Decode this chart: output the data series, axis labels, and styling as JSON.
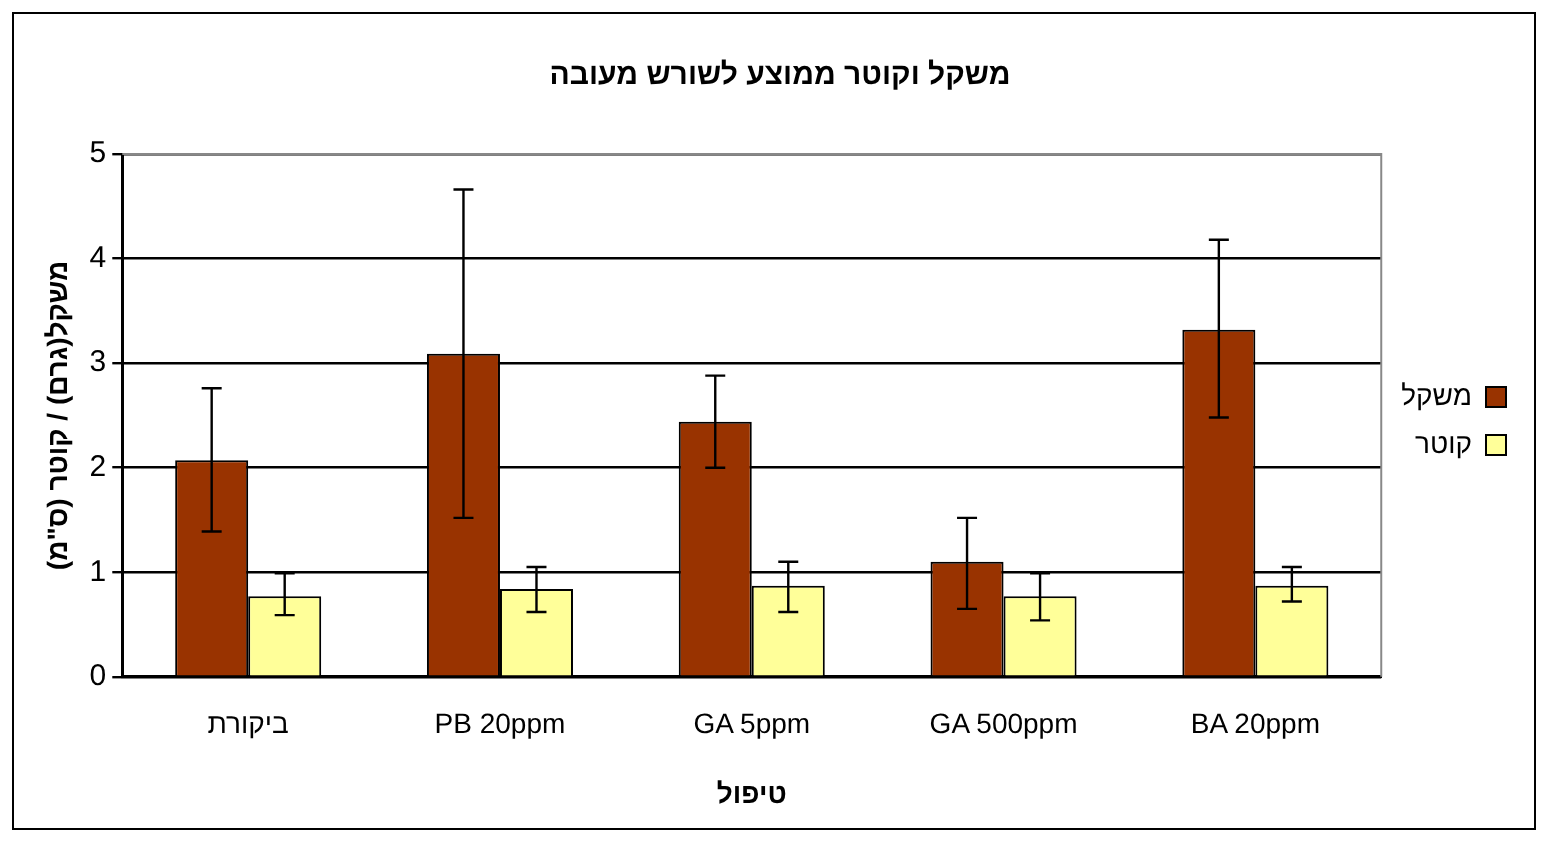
{
  "chart_data": {
    "type": "bar",
    "title": "משקל וקוטר ממוצע לשורש מעובה",
    "xlabel": "טיפול",
    "ylabel": "משקל(גרם) / קוטר (ס\"מ)",
    "categories": [
      "ביקורת",
      "PB 20ppm",
      "GA 5ppm",
      "GA 500ppm",
      "BA 20ppm"
    ],
    "series": [
      {
        "name": "משקל",
        "color": "#993300",
        "values": [
          2.07,
          3.09,
          2.44,
          1.1,
          3.32
        ],
        "errors": [
          [
            1.39,
            2.76
          ],
          [
            1.52,
            4.66
          ],
          [
            2.0,
            2.88
          ],
          [
            0.65,
            1.52
          ],
          [
            2.48,
            4.18
          ]
        ]
      },
      {
        "name": "קוטר",
        "color": "#ffff99",
        "values": [
          0.77,
          0.84,
          0.87,
          0.77,
          0.87
        ],
        "errors": [
          [
            0.59,
            0.99
          ],
          [
            0.62,
            1.05
          ],
          [
            0.62,
            1.1
          ],
          [
            0.54,
            0.99
          ],
          [
            0.72,
            1.05
          ]
        ]
      }
    ],
    "ylim": [
      0,
      5
    ],
    "yticks": [
      0,
      1,
      2,
      3,
      4,
      5
    ],
    "grid": "y",
    "legend": "right"
  }
}
